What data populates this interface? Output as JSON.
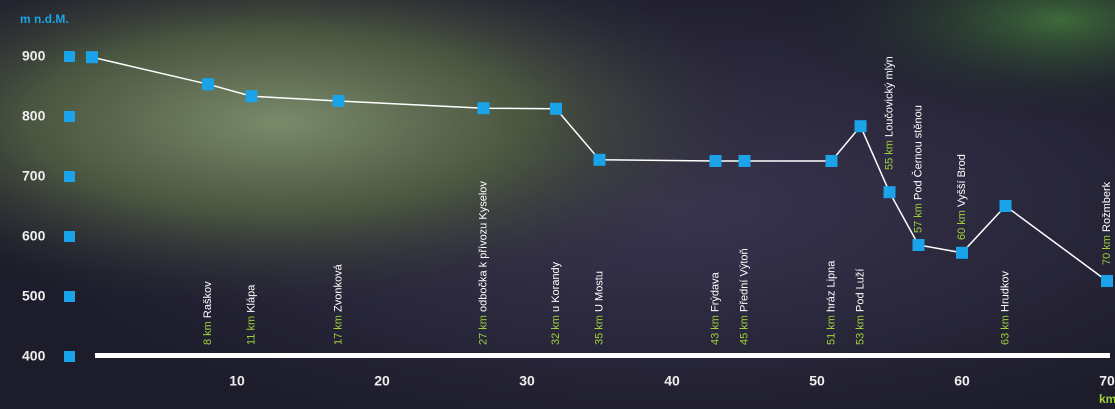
{
  "chart_data": {
    "type": "line",
    "y_axis_label": "m n.d.M.",
    "x_axis_label": "km",
    "x": [
      0,
      8,
      11,
      17,
      27,
      32,
      35,
      43,
      45,
      51,
      53,
      55,
      57,
      60,
      63,
      70
    ],
    "x_labels": [
      null,
      "8 km",
      "11 km",
      "17  km",
      "27 km",
      "32 km",
      "35 km",
      "43 km",
      "45 km",
      "51 km",
      "53 km",
      "55 km",
      "57 km",
      "60 km",
      "63 km",
      "70 km"
    ],
    "point_names": [
      null,
      "Raškov",
      "Klápa",
      "Zvonková",
      "odbočka k přívozu Kyselov",
      "u  Korandy",
      "U Mostu",
      "Frýdava",
      "Přední Výtoň",
      "hráz Lipna",
      "Pod Luží",
      "Loučovický mlýn",
      "Pod Černou stěnou",
      "Vyšší Brod",
      "Hrudkov",
      "Rožmberk"
    ],
    "series": [
      {
        "name": "elevation",
        "color": "#1aa3e8",
        "line_color": "#ffffff",
        "values": [
          898,
          853,
          833,
          825,
          813,
          812,
          727,
          725,
          725,
          725,
          783,
          673,
          585,
          572,
          650,
          525
        ]
      }
    ],
    "xlim": [
      0,
      70
    ],
    "xticks": [
      10,
      20,
      30,
      40,
      50,
      60,
      70
    ],
    "ylim": [
      400,
      900
    ],
    "yticks": [
      400,
      500,
      600,
      700,
      800,
      900
    ],
    "km_label_color": "#9fd13a"
  }
}
